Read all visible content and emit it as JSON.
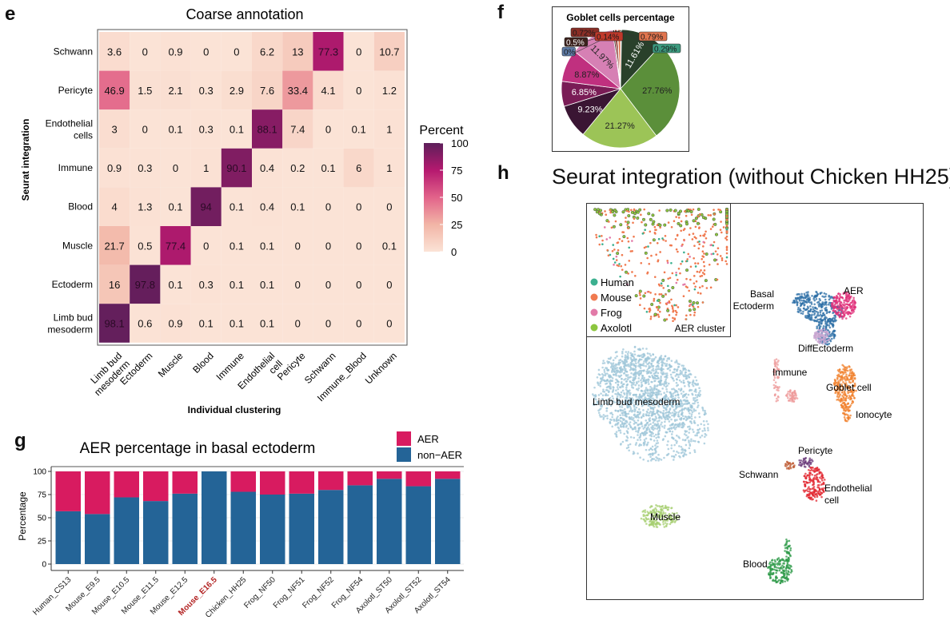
{
  "panels": {
    "e": "e",
    "f": "f",
    "g": "g",
    "h": "h"
  },
  "chart_data": [
    {
      "id": "e",
      "type": "heatmap",
      "title": "Coarse annotation",
      "xlabel": "Individual clustering",
      "ylabel": "Seurat integration",
      "x_categories": [
        "Limb bud mesoderm",
        "Ectoderm",
        "Muscle",
        "Blood",
        "Immune",
        "Endothelial cell",
        "Pericyte",
        "Schwann",
        "Immune_Blood",
        "Unknown"
      ],
      "y_categories": [
        "Schwann",
        "Pericyte",
        "Endothelial cells",
        "Immune",
        "Blood",
        "Muscle",
        "Ectoderm",
        "Limb bud mesoderm"
      ],
      "values": [
        [
          3.6,
          0,
          0.9,
          0,
          0,
          6.2,
          13,
          77.3,
          0,
          10.7
        ],
        [
          46.9,
          1.5,
          2.1,
          0.3,
          2.9,
          7.6,
          33.4,
          4.1,
          0,
          1.2
        ],
        [
          3,
          0,
          0.1,
          0.3,
          0.1,
          88.1,
          7.4,
          0,
          0.1,
          1
        ],
        [
          0.9,
          0.3,
          0,
          1,
          90.1,
          0.4,
          0.2,
          0.1,
          6,
          1
        ],
        [
          4,
          1.3,
          0.1,
          94,
          0.1,
          0.4,
          0.1,
          0,
          0,
          0
        ],
        [
          21.7,
          0.5,
          77.4,
          0,
          0.1,
          0.1,
          0,
          0,
          0,
          0.1
        ],
        [
          16,
          97.8,
          0.1,
          0.3,
          0.1,
          0.1,
          0,
          0,
          0,
          0
        ],
        [
          98.1,
          0.6,
          0.9,
          0.1,
          0.1,
          0.1,
          0,
          0,
          0,
          0
        ]
      ],
      "colorbar": {
        "title": "Percent",
        "range": [
          0,
          100
        ],
        "ticks": [
          100,
          75,
          50,
          25,
          0
        ],
        "colors": [
          "#fbe3d6",
          "#f2b5a6",
          "#e2638a",
          "#b5196f",
          "#5d1f5a"
        ]
      }
    },
    {
      "id": "f",
      "type": "pie",
      "title": "Goblet cells percentage",
      "slices": [
        {
          "label": "0.29%",
          "value": 0.29,
          "color": "#3c9a7e",
          "callout": true
        },
        {
          "label": "11.61%",
          "value": 11.61,
          "color": "#29402a",
          "callout": false
        },
        {
          "label": "27.76%",
          "value": 27.76,
          "color": "#5b8f3a",
          "callout": false
        },
        {
          "label": "21.27%",
          "value": 21.27,
          "color": "#9cc457",
          "callout": false
        },
        {
          "label": "9.23%",
          "value": 9.23,
          "color": "#3a1533",
          "callout": false
        },
        {
          "label": "6.85%",
          "value": 6.85,
          "color": "#7a1c56",
          "callout": false
        },
        {
          "label": "8.87%",
          "value": 8.87,
          "color": "#c0307f",
          "callout": false
        },
        {
          "label": "11.97%",
          "value": 11.97,
          "color": "#d680b4",
          "callout": false
        },
        {
          "label": "0%",
          "value": 0.0,
          "color": "#5f7ca8",
          "callout": true
        },
        {
          "label": "0.5%",
          "value": 0.5,
          "color": "#3b211c",
          "callout": true
        },
        {
          "label": "0.72%",
          "value": 0.72,
          "color": "#8a2e26",
          "callout": true
        },
        {
          "label": "0.14%",
          "value": 0.14,
          "color": "#c0392b",
          "callout": true
        },
        {
          "label": "0.79%",
          "value": 0.79,
          "color": "#e0744e",
          "callout": true
        }
      ]
    },
    {
      "id": "g",
      "type": "bar",
      "stacked": true,
      "title": "AER percentage in basal ectoderm",
      "xlabel": "",
      "ylabel": "Percentage",
      "ylim": [
        0,
        100
      ],
      "yticks": [
        0,
        25,
        50,
        75,
        100
      ],
      "grid": true,
      "legend_position": "top-right",
      "categories": [
        "Human_CS13",
        "Mouse_E9.5",
        "Mouse_E10.5",
        "Mouse_E11.5",
        "Mouse_E12.5",
        "Mouse_E16.5",
        "Chicken_HH25",
        "Frog_NF50",
        "Frog_NF51",
        "Frog_NF52",
        "Frog_NF54",
        "Axolotl_ST50",
        "Axolotl_ST52",
        "Axolotl_ST54"
      ],
      "highlighted_category": "Mouse_E16.5",
      "highlight_color": "#b22222",
      "series": [
        {
          "name": "non−AER",
          "color": "#246497",
          "values": [
            57,
            54,
            72,
            68,
            76,
            100,
            78,
            75,
            76,
            80,
            85,
            92,
            84,
            92
          ]
        },
        {
          "name": "AER",
          "color": "#d81b60",
          "values": [
            43,
            46,
            28,
            32,
            24,
            0,
            22,
            25,
            24,
            20,
            15,
            8,
            16,
            8
          ]
        }
      ],
      "legend": [
        "AER",
        "non−AER"
      ]
    },
    {
      "id": "h",
      "type": "scatter",
      "title": "Seurat integration (without Chicken HH25)",
      "clusters": [
        {
          "label": "Limb bud mesoderm",
          "color": "#9ec5d8"
        },
        {
          "label": "Basal Ectoderm",
          "color": "#2b6ea6"
        },
        {
          "label": "AER",
          "color": "#e0307a"
        },
        {
          "label": "DiffEctoderm",
          "color": "#c8a6d0"
        },
        {
          "label": "Immune",
          "color": "#ee9a9a"
        },
        {
          "label": "Goblet cell",
          "color": "#f07f2a"
        },
        {
          "label": "Ionocyte",
          "color": "#f07f2a"
        },
        {
          "label": "Pericyte",
          "color": "#6a3a7a"
        },
        {
          "label": "Schwann",
          "color": "#c0603a"
        },
        {
          "label": "Endothelial cell",
          "color": "#e2262f"
        },
        {
          "label": "Muscle",
          "color": "#a7cf72"
        },
        {
          "label": "Blood",
          "color": "#2e9a48"
        }
      ],
      "inset": {
        "title": "AER cluster",
        "legend": [
          {
            "label": "Human",
            "color": "#3bb08f"
          },
          {
            "label": "Mouse",
            "color": "#f07a50"
          },
          {
            "label": "Frog",
            "color": "#e27aa8"
          },
          {
            "label": "Axolotl",
            "color": "#8cc63f"
          }
        ]
      }
    }
  ]
}
